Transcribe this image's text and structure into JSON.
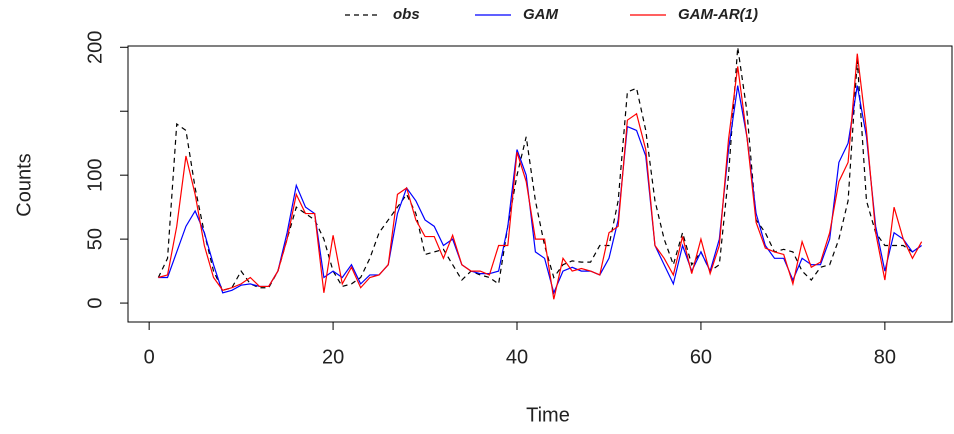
{
  "chart_data": {
    "type": "line",
    "xlabel": "Time",
    "ylabel": "Counts",
    "x": [
      1,
      2,
      3,
      4,
      5,
      6,
      7,
      8,
      9,
      10,
      11,
      12,
      13,
      14,
      15,
      16,
      17,
      18,
      19,
      20,
      21,
      22,
      23,
      24,
      25,
      26,
      27,
      28,
      29,
      30,
      31,
      32,
      33,
      34,
      35,
      36,
      37,
      38,
      39,
      40,
      41,
      42,
      43,
      44,
      45,
      46,
      47,
      48,
      49,
      50,
      51,
      52,
      53,
      54,
      55,
      56,
      57,
      58,
      59,
      60,
      61,
      62,
      63,
      64,
      65,
      66,
      67,
      68,
      69,
      70,
      71,
      72,
      73,
      74,
      75,
      76,
      77,
      78,
      79,
      80,
      81,
      82,
      83,
      84
    ],
    "series": [
      {
        "name": "obs",
        "color": "#000000",
        "linestyle": "dashed",
        "values": [
          20,
          35,
          140,
          135,
          90,
          55,
          25,
          10,
          12,
          25,
          15,
          12,
          12,
          25,
          50,
          75,
          70,
          65,
          50,
          25,
          13,
          15,
          20,
          35,
          55,
          65,
          75,
          85,
          70,
          38,
          40,
          42,
          30,
          18,
          25,
          22,
          20,
          15,
          60,
          100,
          130,
          80,
          45,
          20,
          30,
          33,
          32,
          32,
          45,
          45,
          80,
          165,
          168,
          135,
          80,
          50,
          30,
          55,
          30,
          40,
          25,
          30,
          100,
          200,
          150,
          65,
          55,
          40,
          42,
          40,
          25,
          18,
          28,
          30,
          50,
          80,
          190,
          80,
          55,
          45,
          45,
          45,
          40,
          45
        ]
      },
      {
        "name": "GAM",
        "color": "#0000ff",
        "linestyle": "solid",
        "values": [
          20,
          20,
          40,
          60,
          72,
          55,
          30,
          8,
          10,
          14,
          15,
          13,
          13,
          25,
          55,
          92,
          75,
          70,
          20,
          25,
          20,
          30,
          15,
          22,
          22,
          30,
          70,
          90,
          80,
          65,
          60,
          45,
          50,
          30,
          25,
          23,
          23,
          25,
          60,
          120,
          100,
          40,
          35,
          8,
          25,
          28,
          25,
          25,
          22,
          35,
          65,
          138,
          135,
          115,
          45,
          30,
          15,
          45,
          25,
          40,
          25,
          50,
          120,
          170,
          130,
          70,
          45,
          35,
          35,
          18,
          35,
          30,
          30,
          50,
          110,
          125,
          170,
          130,
          60,
          25,
          55,
          50,
          40,
          45
        ]
      },
      {
        "name": "GAM-AR(1)",
        "color": "#ff0000",
        "linestyle": "solid",
        "values": [
          20,
          22,
          60,
          115,
          85,
          45,
          20,
          10,
          12,
          15,
          20,
          13,
          13,
          25,
          50,
          85,
          70,
          70,
          8,
          53,
          15,
          28,
          12,
          20,
          22,
          30,
          85,
          90,
          65,
          52,
          52,
          35,
          53,
          30,
          25,
          25,
          22,
          45,
          45,
          118,
          95,
          50,
          50,
          3,
          35,
          25,
          27,
          25,
          22,
          55,
          60,
          143,
          148,
          120,
          45,
          35,
          22,
          52,
          23,
          50,
          23,
          45,
          128,
          185,
          130,
          63,
          43,
          40,
          38,
          15,
          48,
          28,
          32,
          55,
          95,
          110,
          195,
          135,
          55,
          18,
          75,
          50,
          35,
          48
        ]
      }
    ],
    "xlim": [
      -2.3,
      87.3
    ],
    "ylim": [
      -14.8,
      201
    ],
    "xticks": [
      0,
      20,
      40,
      60,
      80
    ],
    "yticks": [
      0,
      50,
      100,
      {
        "value": 150,
        "label": null
      },
      200
    ],
    "legend": "top"
  }
}
